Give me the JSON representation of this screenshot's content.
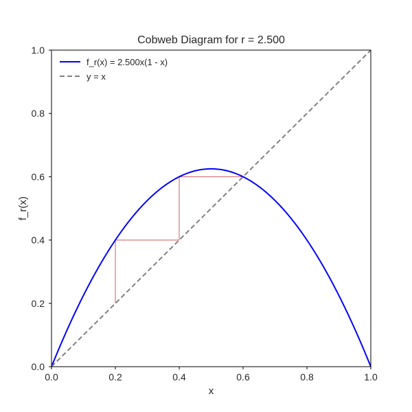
{
  "chart_data": {
    "type": "line",
    "title": "Cobweb Diagram for r = 2.500",
    "xlabel": "x",
    "ylabel": "f_r(x)",
    "r": 2.5,
    "xlim": [
      0.0,
      1.0
    ],
    "ylim": [
      0.0,
      1.0
    ],
    "xticks": [
      "0.0",
      "0.2",
      "0.4",
      "0.6",
      "0.8",
      "1.0"
    ],
    "yticks": [
      "0.0",
      "0.2",
      "0.4",
      "0.6",
      "0.8",
      "1.0"
    ],
    "grid": false,
    "legend_position": "top-left",
    "series": [
      {
        "name": "f_r(x) = 2.500x(1 - x)",
        "kind": "function",
        "function": "r*x*(1-x)",
        "color": "#0000ff",
        "style": "solid",
        "x": [
          0.0,
          0.1,
          0.2,
          0.3,
          0.4,
          0.5,
          0.6,
          0.7,
          0.8,
          0.9,
          1.0
        ],
        "y": [
          0.0,
          0.225,
          0.4,
          0.525,
          0.6,
          0.625,
          0.6,
          0.525,
          0.4,
          0.225,
          0.0
        ]
      },
      {
        "name": "y = x",
        "kind": "identity",
        "color": "#808080",
        "style": "dashed",
        "x": [
          0.0,
          1.0
        ],
        "y": [
          0.0,
          1.0
        ]
      }
    ],
    "cobweb": {
      "color": "#cd5c5c",
      "x0": 0.2,
      "points": [
        [
          0.2,
          0.2
        ],
        [
          0.2,
          0.4
        ],
        [
          0.4,
          0.4
        ],
        [
          0.4,
          0.6
        ],
        [
          0.6,
          0.6
        ]
      ]
    }
  }
}
